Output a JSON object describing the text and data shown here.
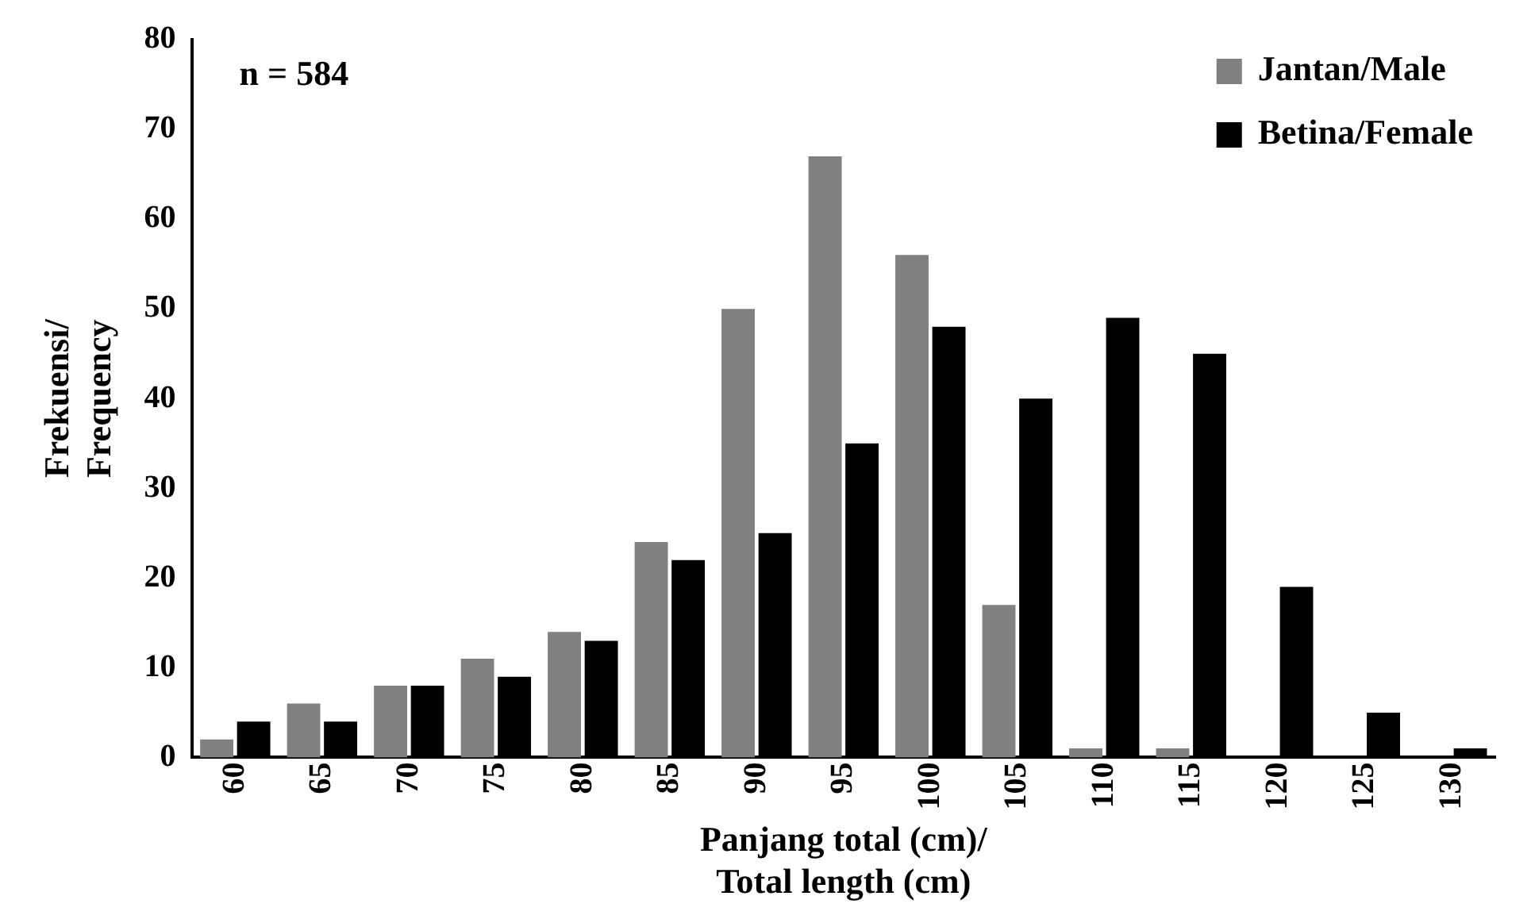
{
  "chart_data": {
    "type": "bar",
    "categories": [
      "60",
      "65",
      "70",
      "75",
      "80",
      "85",
      "90",
      "95",
      "100",
      "105",
      "110",
      "115",
      "120",
      "125",
      "130"
    ],
    "series": [
      {
        "name": "Jantan/Male",
        "color": "#808080",
        "values": [
          2,
          6,
          8,
          11,
          14,
          24,
          50,
          67,
          56,
          17,
          1,
          1,
          0,
          0,
          0
        ]
      },
      {
        "name": "Betina/Female",
        "color": "#000000",
        "values": [
          4,
          4,
          8,
          9,
          13,
          22,
          25,
          35,
          48,
          40,
          49,
          45,
          19,
          5,
          1
        ]
      }
    ],
    "xlabel": "Panjang total (cm)/\nTotal length (cm)",
    "ylabel": "Frekuensi/\nFrequency",
    "ylim": [
      0,
      80
    ],
    "yticks": [
      0,
      10,
      20,
      30,
      40,
      50,
      60,
      70,
      80
    ],
    "grid": false,
    "legend": "top right",
    "annotations": [
      "n = 584"
    ]
  }
}
